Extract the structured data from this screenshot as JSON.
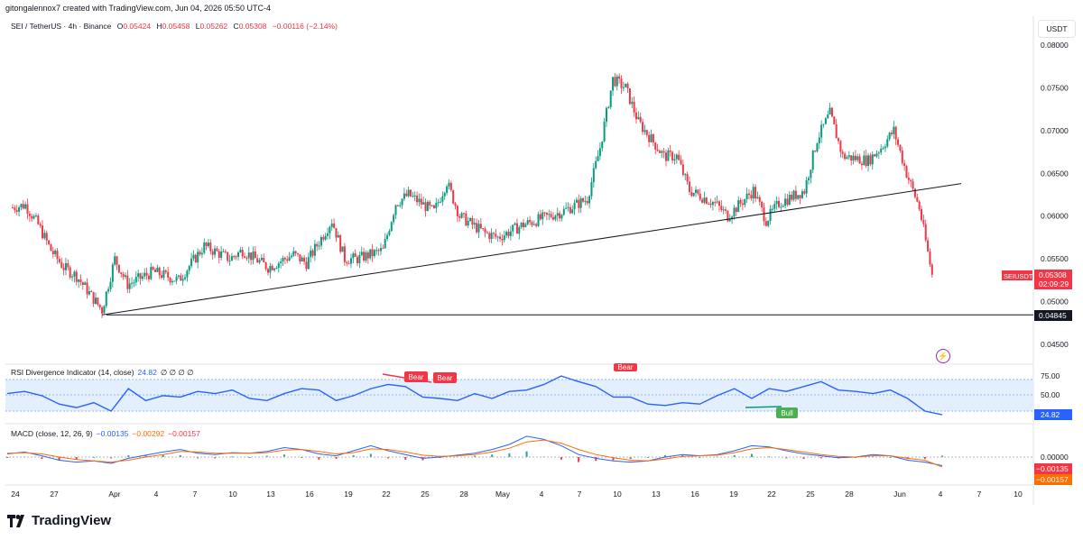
{
  "header": {
    "created_by": "gitongalennox7 created with TradingView.com, Jun 04, 2026 05:50 UTC-4"
  },
  "legend": {
    "symbol": "SEI / TetherUS · 4h · Binance",
    "open_label": "O",
    "open": "0.05424",
    "high_label": "H",
    "high": "0.05458",
    "low_label": "L",
    "low": "0.05262",
    "close_label": "C",
    "close": "0.05308",
    "change": "−0.00116 (−2.14%)"
  },
  "currency_button": "USDT",
  "price_scale": [
    "0.08000",
    "0.07500",
    "0.07000",
    "0.06500",
    "0.06000",
    "0.05500",
    "0.05000",
    "0.04500"
  ],
  "price_tag": {
    "symbol": "SEIUSDT",
    "price": "0.05308",
    "countdown": "02:09:29"
  },
  "level_tag": "0.04845",
  "rsi": {
    "title": "RSI Divergence Indicator (14, close)",
    "value": "24.82",
    "placeholders": "∅ ∅ ∅ ∅",
    "scale": [
      "75.00",
      "50.00"
    ],
    "tag": "24.82",
    "labels": {
      "bear1": "Bear",
      "bear2": "Bear",
      "bear3": "Bear",
      "bull": "Bull"
    }
  },
  "macd": {
    "title": "MACD (close, 12, 26, 9)",
    "v1": "−0.00135",
    "v2": "−0.00292",
    "v3": "−0.00157",
    "scale": "0.00000",
    "tag1": "−0.00135",
    "tag2": "−0.00157"
  },
  "time_axis": [
    "24",
    "27",
    "Apr",
    "4",
    "7",
    "10",
    "13",
    "16",
    "19",
    "22",
    "25",
    "28",
    "May",
    "4",
    "7",
    "10",
    "13",
    "16",
    "19",
    "22",
    "25",
    "28",
    "Jun",
    "4",
    "7",
    "10"
  ],
  "brand": "TradingView",
  "colors": {
    "up": "#089981",
    "down": "#f23645",
    "rsi_line": "#2962ff",
    "macd_line": "#2962ff",
    "signal_line": "#ff6d00",
    "rsi_band": "#e3effd"
  },
  "chart_data": {
    "type": "candlestick",
    "title": "SEI / TetherUS · 4h · Binance",
    "ylim": [
      0.044,
      0.082
    ],
    "price_close_path": [
      [
        "Mar 24",
        0.061
      ],
      [
        "Mar 25",
        0.0613
      ],
      [
        "Mar 26",
        0.059
      ],
      [
        "Mar 27",
        0.056
      ],
      [
        "Mar 28",
        0.054
      ],
      [
        "Mar 29",
        0.053
      ],
      [
        "Mar 31",
        0.049
      ],
      [
        "Apr 1",
        0.055
      ],
      [
        "Apr 2",
        0.052
      ],
      [
        "Apr 4",
        0.0535
      ],
      [
        "Apr 6",
        0.0525
      ],
      [
        "Apr 7",
        0.0545
      ],
      [
        "Apr 8",
        0.0565
      ],
      [
        "Apr 10",
        0.055
      ],
      [
        "Apr 11",
        0.056
      ],
      [
        "Apr 13",
        0.054
      ],
      [
        "Apr 15",
        0.0555
      ],
      [
        "Apr 16",
        0.0545
      ],
      [
        "Apr 18",
        0.0595
      ],
      [
        "Apr 19",
        0.055
      ],
      [
        "Apr 20",
        0.055
      ],
      [
        "Apr 22",
        0.056
      ],
      [
        "Apr 23",
        0.0615
      ],
      [
        "Apr 24",
        0.0625
      ],
      [
        "Apr 26",
        0.0605
      ],
      [
        "Apr 27",
        0.064
      ],
      [
        "Apr 28",
        0.06
      ],
      [
        "Apr 30",
        0.058
      ],
      [
        "May 1",
        0.0575
      ],
      [
        "May 3",
        0.059
      ],
      [
        "May 5",
        0.06
      ],
      [
        "May 6",
        0.0605
      ],
      [
        "May 8",
        0.062
      ],
      [
        "May 9",
        0.068
      ],
      [
        "May 10",
        0.076
      ],
      [
        "May 11",
        0.075
      ],
      [
        "May 12",
        0.071
      ],
      [
        "May 14",
        0.067
      ],
      [
        "May 15",
        0.067
      ],
      [
        "May 16",
        0.063
      ],
      [
        "May 18",
        0.0615
      ],
      [
        "May 19",
        0.06
      ],
      [
        "May 21",
        0.063
      ],
      [
        "May 22",
        0.0595
      ],
      [
        "May 23",
        0.0615
      ],
      [
        "May 25",
        0.063
      ],
      [
        "May 26",
        0.069
      ],
      [
        "May 27",
        0.072
      ],
      [
        "May 28",
        0.067
      ],
      [
        "May 30",
        0.0665
      ],
      [
        "May 31",
        0.068
      ],
      [
        "Jun 1",
        0.07
      ],
      [
        "Jun 2",
        0.065
      ],
      [
        "Jun 3",
        0.061
      ],
      [
        "Jun 4",
        0.0531
      ]
    ],
    "support_level": 0.04845,
    "trendline": [
      [
        "Mar 31",
        0.04845
      ],
      [
        "Jun 5",
        0.0638
      ]
    ],
    "rsi_ylim": [
      0,
      100
    ],
    "rsi_path": [
      55,
      58,
      52,
      40,
      35,
      42,
      30,
      62,
      45,
      52,
      50,
      58,
      55,
      60,
      48,
      45,
      55,
      62,
      60,
      45,
      52,
      62,
      68,
      65,
      50,
      48,
      45,
      55,
      48,
      58,
      60,
      68,
      80,
      72,
      65,
      50,
      50,
      40,
      38,
      42,
      40,
      52,
      62,
      48,
      62,
      58,
      65,
      72,
      60,
      58,
      55,
      60,
      48,
      30,
      24.82
    ],
    "macd_ylim": [
      -0.0025,
      0.004
    ],
    "macd_path": [
      0.0005,
      0.0008,
      0.0002,
      -0.0005,
      -0.0008,
      -0.0006,
      -0.001,
      -0.0002,
      0.0003,
      0.0008,
      0.0012,
      0.0006,
      0.0004,
      0.0007,
      0.0006,
      0.0009,
      0.0015,
      0.0012,
      0.0005,
      0.0002,
      0.001,
      0.0018,
      0.001,
      0.0004,
      -0.0002,
      0.0,
      0.0003,
      0.0006,
      0.0012,
      0.002,
      0.0033,
      0.0028,
      0.0018,
      0.0004,
      -0.0002,
      -0.0006,
      -0.0008,
      -0.0006,
      0.0,
      0.0004,
      0.0002,
      0.0004,
      0.001,
      0.0018,
      0.0016,
      0.001,
      0.0005,
      0.0002,
      -0.0001,
      0.0,
      0.0004,
      0.0002,
      -0.0005,
      -0.0008,
      -0.00135
    ],
    "signal_path": [
      0.0006,
      0.0007,
      0.0005,
      0.0,
      -0.0004,
      -0.0006,
      -0.0008,
      -0.0005,
      0.0,
      0.0004,
      0.0009,
      0.0008,
      0.0006,
      0.0006,
      0.0006,
      0.0007,
      0.0011,
      0.0012,
      0.0009,
      0.0005,
      0.0007,
      0.0013,
      0.0012,
      0.0008,
      0.0003,
      0.0001,
      0.0002,
      0.0004,
      0.0008,
      0.0014,
      0.0024,
      0.0027,
      0.0022,
      0.0012,
      0.0004,
      -0.0001,
      -0.0005,
      -0.0006,
      -0.0003,
      0.0001,
      0.0002,
      0.0003,
      0.0007,
      0.0013,
      0.0015,
      0.0012,
      0.0008,
      0.0004,
      0.0001,
      0.0,
      0.0002,
      0.0002,
      -0.0002,
      -0.0005,
      -0.00157
    ]
  }
}
